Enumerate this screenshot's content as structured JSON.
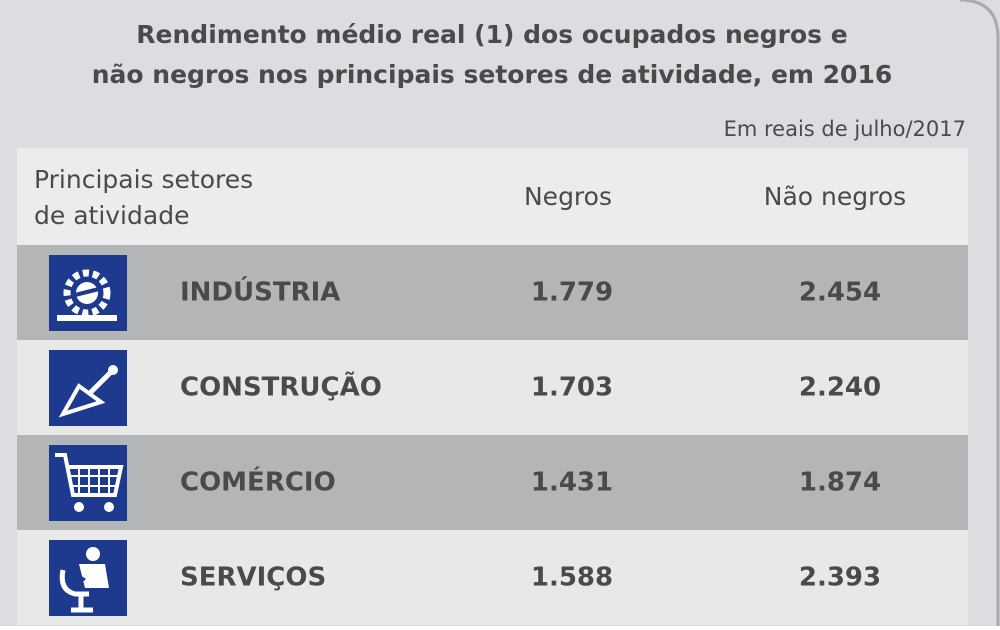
{
  "header": {
    "title_lines": [
      "Rendimento médio real (1) dos ocupados negros e",
      "não negros nos principais setores de atividade, em 2016"
    ],
    "subtitle": "Em reais de julho/2017"
  },
  "table": {
    "columns": [
      [
        "Principais setores",
        "de atividade"
      ],
      "Negros",
      "Não negros"
    ],
    "rows": [
      [
        "INDÚSTRIA",
        "1.779",
        "2.454"
      ],
      [
        "CONSTRUÇÃO",
        "1.703",
        "2.240"
      ],
      [
        "COMÉRCIO",
        "1.431",
        "1.874"
      ],
      [
        "SERVIÇOS",
        "1.588",
        "2.393"
      ]
    ]
  }
}
